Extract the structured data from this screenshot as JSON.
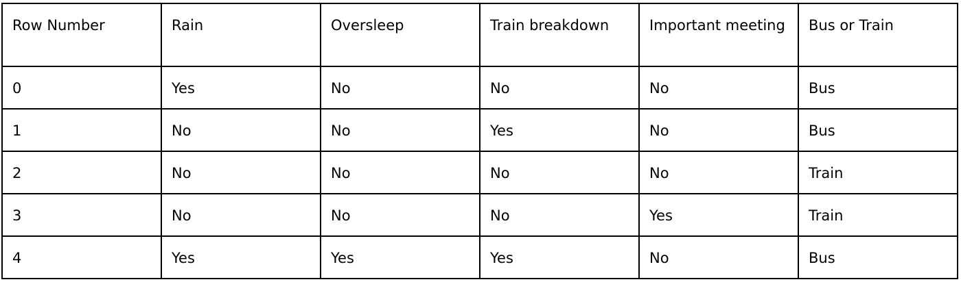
{
  "table": {
    "columns": [
      "Row Number",
      "Rain",
      "Oversleep",
      "Train breakdown",
      "Important meeting",
      "Bus or Train"
    ],
    "rows": [
      [
        "0",
        "Yes",
        "No",
        "No",
        "No",
        "Bus"
      ],
      [
        "1",
        "No",
        "No",
        "Yes",
        "No",
        "Bus"
      ],
      [
        "2",
        "No",
        "No",
        "No",
        "No",
        "Train"
      ],
      [
        "3",
        "No",
        "No",
        "No",
        "Yes",
        "Train"
      ],
      [
        "4",
        "Yes",
        "Yes",
        "Yes",
        "No",
        "Bus"
      ]
    ]
  }
}
